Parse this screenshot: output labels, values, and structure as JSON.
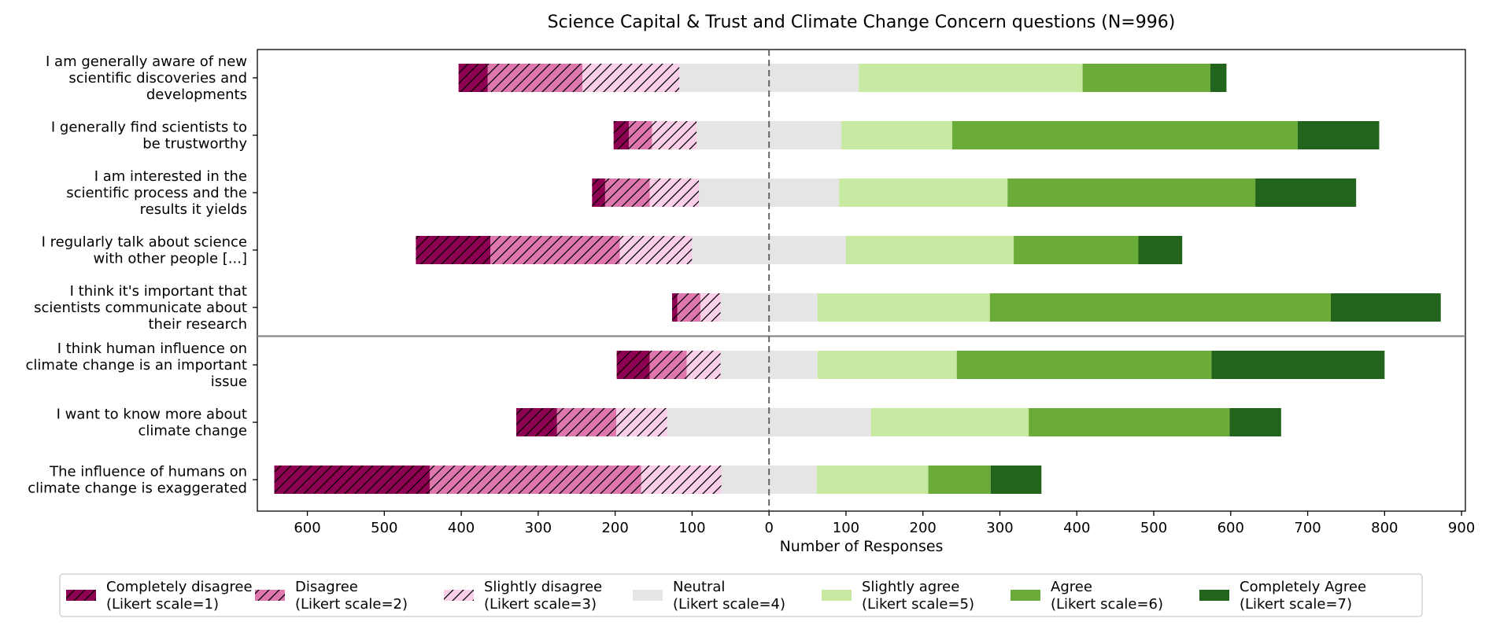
{
  "chart_data": {
    "type": "bar",
    "subtype": "diverging-stacked-horizontal",
    "title": "Science Capital & Trust and Climate Change Concern questions (N=996)",
    "xlabel": "Number of Responses",
    "ylabel": "",
    "xlim": [
      -665,
      905
    ],
    "xticks": [
      -600,
      -500,
      -400,
      -300,
      -200,
      -100,
      0,
      100,
      200,
      300,
      400,
      500,
      600,
      700,
      800,
      900
    ],
    "xtick_labels": [
      "600",
      "500",
      "400",
      "300",
      "200",
      "100",
      "0",
      "100",
      "200",
      "300",
      "400",
      "500",
      "600",
      "700",
      "800",
      "900"
    ],
    "center_line": "0 (dashed)",
    "group_separator_after_index": 4,
    "categories": [
      [
        "I am generally aware of new",
        "scientific discoveries and",
        "developments"
      ],
      [
        "I generally find scientists to",
        "be trustworthy"
      ],
      [
        "I am interested in the",
        "scientific process and the",
        "results it yields"
      ],
      [
        "I regularly talk about science",
        "with other people [...]"
      ],
      [
        "I think it's important that",
        "scientists communicate about",
        "their research"
      ],
      [
        "I think human influence on",
        "climate change is an important",
        "issue"
      ],
      [
        "I want to know more about",
        "climate change"
      ],
      [
        "The influence of humans on",
        "climate change is exaggerated"
      ]
    ],
    "series": [
      {
        "name": "Completely disagree",
        "sub": "(Likert scale=1)",
        "color": "#8e0152",
        "hatch": true,
        "values": [
          38,
          20,
          17,
          97,
          7,
          43,
          53,
          202
        ]
      },
      {
        "name": "Disagree",
        "sub": "(Likert scale=2)",
        "color": "#de77ae",
        "hatch": true,
        "values": [
          123,
          30,
          58,
          168,
          30,
          48,
          77,
          275
        ]
      },
      {
        "name": "Slightly disagree",
        "sub": "(Likert scale=3)",
        "color": "#f9d0e7",
        "hatch": true,
        "values": [
          126,
          58,
          64,
          94,
          26,
          44,
          66,
          104
        ]
      },
      {
        "name": "Neutral",
        "sub": "(Likert scale=4)",
        "color": "#e5e5e5",
        "hatch": false,
        "values": [
          233,
          188,
          182,
          200,
          126,
          126,
          265,
          124
        ]
      },
      {
        "name": "Slightly agree",
        "sub": "(Likert scale=5)",
        "color": "#c7e9a1",
        "hatch": false,
        "values": [
          291,
          144,
          219,
          218,
          224,
          181,
          205,
          145
        ]
      },
      {
        "name": "Agree",
        "sub": "(Likert scale=6)",
        "color": "#6aac37",
        "hatch": false,
        "values": [
          166,
          449,
          322,
          162,
          443,
          331,
          261,
          81
        ]
      },
      {
        "name": "Completely Agree",
        "sub": "(Likert scale=7)",
        "color": "#23641c",
        "hatch": false,
        "values": [
          21,
          106,
          131,
          57,
          143,
          225,
          67,
          66
        ]
      }
    ]
  }
}
